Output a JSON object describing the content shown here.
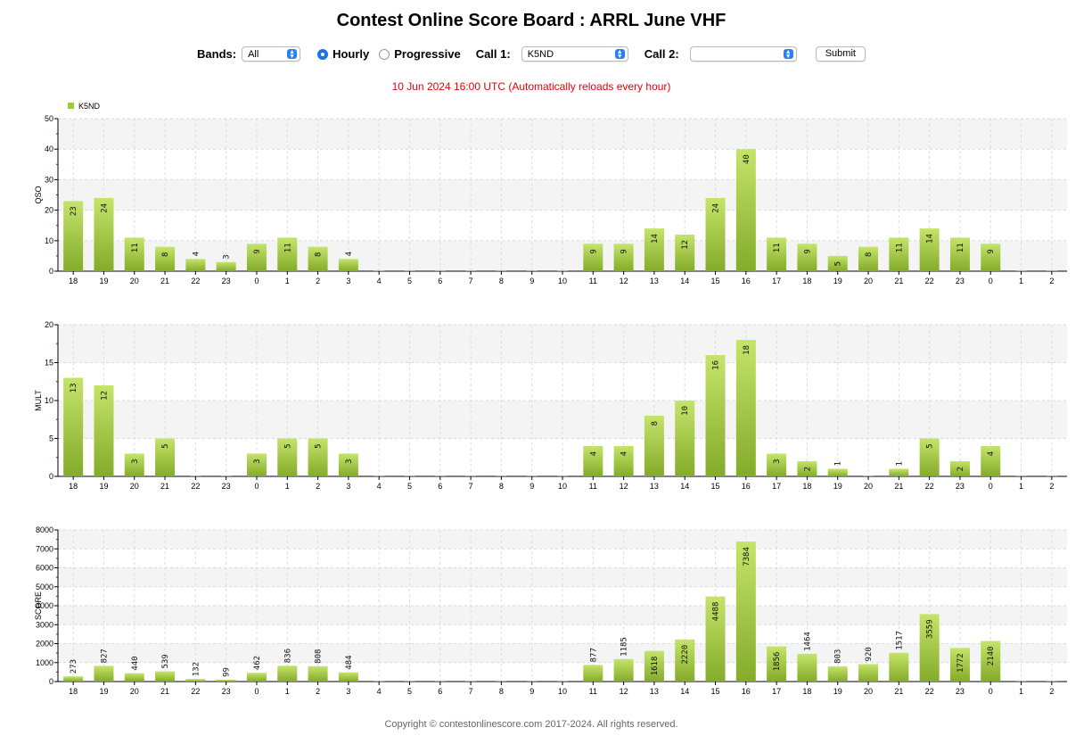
{
  "page": {
    "title": "Contest Online Score Board : ARRL June VHF",
    "status_text": "10 Jun 2024 16:00 UTC   (Automatically reloads every hour)",
    "footer": "Copyright © contestonlinescore.com 2017-2024. All rights reserved."
  },
  "controls": {
    "bands_label": "Bands:",
    "bands_value": "All",
    "hourly_label": "Hourly",
    "hourly_selected": true,
    "progressive_label": "Progressive",
    "call1_label": "Call 1:",
    "call1_value": "K5ND",
    "call2_label": "Call 2:",
    "call2_value": "",
    "submit_label": "Submit"
  },
  "colors": {
    "bar_top": "#c4e46a",
    "bar_bottom": "#84ab2a",
    "legend": "#9acd32",
    "status": "#e8000b"
  },
  "chart_data": [
    {
      "type": "bar",
      "legend": "K5ND",
      "legend_position": "top-left",
      "ylabel": "QSO",
      "ylim": [
        0,
        50
      ],
      "yticks": [
        0,
        10,
        20,
        30,
        40,
        50
      ],
      "grid": true,
      "categories": [
        "18",
        "19",
        "20",
        "21",
        "22",
        "23",
        "0",
        "1",
        "2",
        "3",
        "4",
        "5",
        "6",
        "7",
        "8",
        "9",
        "10",
        "11",
        "12",
        "13",
        "14",
        "15",
        "16",
        "17",
        "18",
        "19",
        "20",
        "21",
        "22",
        "23",
        "0",
        "1",
        "2"
      ],
      "values": [
        23,
        24,
        11,
        8,
        4,
        3,
        9,
        11,
        8,
        4,
        0,
        0,
        0,
        0,
        0,
        0,
        0,
        9,
        9,
        14,
        12,
        24,
        40,
        11,
        9,
        5,
        8,
        11,
        14,
        11,
        9,
        0,
        0
      ]
    },
    {
      "type": "bar",
      "ylabel": "MULT",
      "ylim": [
        0,
        20
      ],
      "yticks": [
        0,
        5,
        10,
        15,
        20
      ],
      "grid": true,
      "categories": [
        "18",
        "19",
        "20",
        "21",
        "22",
        "23",
        "0",
        "1",
        "2",
        "3",
        "4",
        "5",
        "6",
        "7",
        "8",
        "9",
        "10",
        "11",
        "12",
        "13",
        "14",
        "15",
        "16",
        "17",
        "18",
        "19",
        "20",
        "21",
        "22",
        "23",
        "0",
        "1",
        "2"
      ],
      "values": [
        13,
        12,
        3,
        5,
        0,
        0,
        3,
        5,
        5,
        3,
        0,
        0,
        0,
        0,
        0,
        0,
        0,
        4,
        4,
        8,
        10,
        16,
        18,
        3,
        2,
        1,
        0,
        1,
        5,
        2,
        4,
        0,
        0
      ]
    },
    {
      "type": "bar",
      "ylabel": "SCORE",
      "ylim": [
        0,
        8000
      ],
      "yticks": [
        0,
        1000,
        2000,
        3000,
        4000,
        5000,
        6000,
        7000,
        8000
      ],
      "grid": true,
      "categories": [
        "18",
        "19",
        "20",
        "21",
        "22",
        "23",
        "0",
        "1",
        "2",
        "3",
        "4",
        "5",
        "6",
        "7",
        "8",
        "9",
        "10",
        "11",
        "12",
        "13",
        "14",
        "15",
        "16",
        "17",
        "18",
        "19",
        "20",
        "21",
        "22",
        "23",
        "0",
        "1",
        "2"
      ],
      "values": [
        273,
        827,
        440,
        539,
        132,
        99,
        462,
        836,
        808,
        484,
        0,
        0,
        0,
        0,
        0,
        0,
        0,
        877,
        1185,
        1618,
        2220,
        4488,
        7384,
        1856,
        1464,
        803,
        920,
        1517,
        3559,
        1772,
        2140,
        0,
        0
      ]
    }
  ]
}
